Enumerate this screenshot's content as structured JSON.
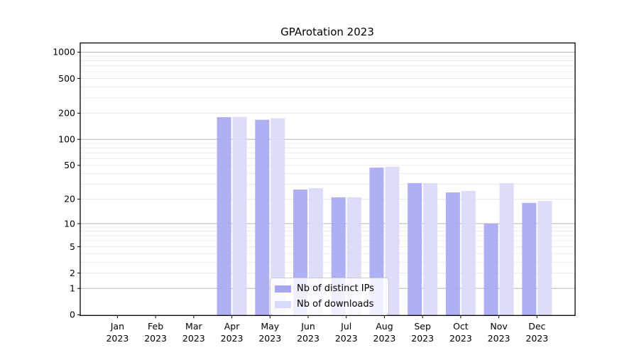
{
  "chart_data": {
    "type": "bar",
    "title": "GPArotation 2023",
    "categories": [
      "Jan 2023",
      "Feb 2023",
      "Mar 2023",
      "Apr 2023",
      "May 2023",
      "Jun 2023",
      "Jul 2023",
      "Aug 2023",
      "Sep 2023",
      "Oct 2023",
      "Nov 2023",
      "Dec 2023"
    ],
    "series": [
      {
        "name": "Nb of distinct IPs",
        "color": "#a6a6f2",
        "values": [
          0,
          0,
          0,
          180,
          168,
          26,
          21,
          47,
          31,
          24,
          10,
          18
        ]
      },
      {
        "name": "Nb of downloads",
        "color": "#d9d9f9",
        "values": [
          0,
          0,
          0,
          181,
          175,
          27,
          21,
          48,
          31,
          25,
          31,
          19
        ]
      }
    ],
    "y_ticks": [
      0,
      1,
      2,
      5,
      10,
      20,
      50,
      100,
      200,
      500,
      1000
    ],
    "y_scale": "log10(1+v)",
    "ylim": [
      0,
      1000
    ],
    "grid": "major and minor horizontal gridlines",
    "legend_position": "lower center",
    "colors": {
      "major_grid": "#b5b5b5",
      "minor_grid": "#e9e9e9",
      "axis": "#000000",
      "text": "#000000"
    }
  }
}
